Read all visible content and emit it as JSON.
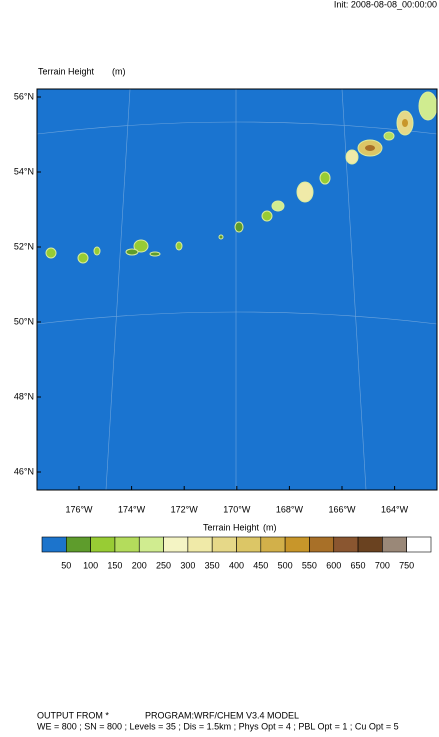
{
  "header": {
    "init": "Init: 2008-08-08_00:00:00",
    "title": "Terrain Height",
    "units": "(m)"
  },
  "map": {
    "lat_labels": [
      "56°N",
      "54°N",
      "52°N",
      "50°N",
      "48°N",
      "46°N"
    ],
    "lon_labels": [
      "176°W",
      "174°W",
      "172°W",
      "170°W",
      "168°W",
      "166°W",
      "164°W"
    ]
  },
  "colorbar": {
    "title": "Terrain Height",
    "units": "(m)",
    "levels": [
      "50",
      "100",
      "150",
      "200",
      "250",
      "300",
      "350",
      "400",
      "450",
      "500",
      "550",
      "600",
      "650",
      "700",
      "750"
    ],
    "colors": [
      "#1c74cc",
      "#5e9c2c",
      "#98cc34",
      "#b4dc5c",
      "#d0ec90",
      "#f4f4c4",
      "#f0eaa8",
      "#e6d888",
      "#dcc666",
      "#d2b04a",
      "#c8962a",
      "#a87028",
      "#8a5630",
      "#6a4220",
      "#9a8878",
      "#ffffff"
    ]
  },
  "footer": {
    "output": "OUTPUT FROM *",
    "program": "PROGRAM:WRF/CHEM V3.4 MODEL",
    "settings": "WE = 800 ; SN = 800 ; Levels = 35 ; Dis = 1.5km ; Phys Opt = 4 ; PBL Opt = 1 ; Cu Opt = 5"
  }
}
